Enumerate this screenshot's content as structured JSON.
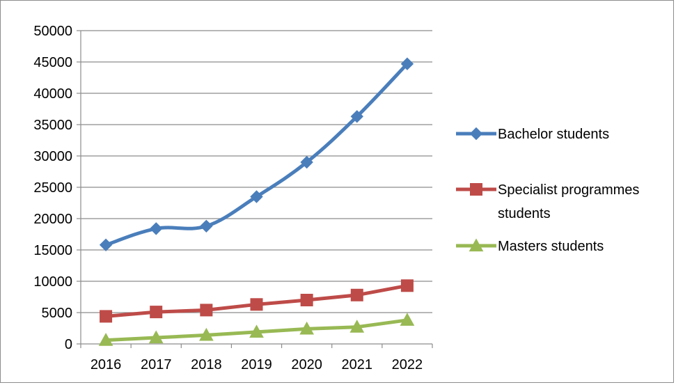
{
  "chart_data": {
    "type": "line",
    "categories": [
      "2016",
      "2017",
      "2018",
      "2019",
      "2020",
      "2021",
      "2022"
    ],
    "series": [
      {
        "name": "Bachelor students",
        "values": [
          15800,
          18400,
          18800,
          23500,
          29000,
          36300,
          44700
        ],
        "color": "#4a7ebb",
        "marker": "diamond"
      },
      {
        "name": "Specialist programmes students",
        "values": [
          4400,
          5100,
          5400,
          6300,
          7000,
          7800,
          9300
        ],
        "color": "#be4b48",
        "marker": "square"
      },
      {
        "name": "Masters students",
        "values": [
          600,
          1000,
          1400,
          1900,
          2400,
          2700,
          3800
        ],
        "color": "#98b954",
        "marker": "triangle"
      }
    ],
    "ylim": [
      0,
      50000
    ],
    "yticks": [
      "0",
      "5000",
      "10000",
      "15000",
      "20000",
      "25000",
      "30000",
      "35000",
      "40000",
      "45000",
      "50000"
    ],
    "grid": "horizontal",
    "legend_position": "right",
    "title": "",
    "xlabel": "",
    "ylabel": ""
  }
}
